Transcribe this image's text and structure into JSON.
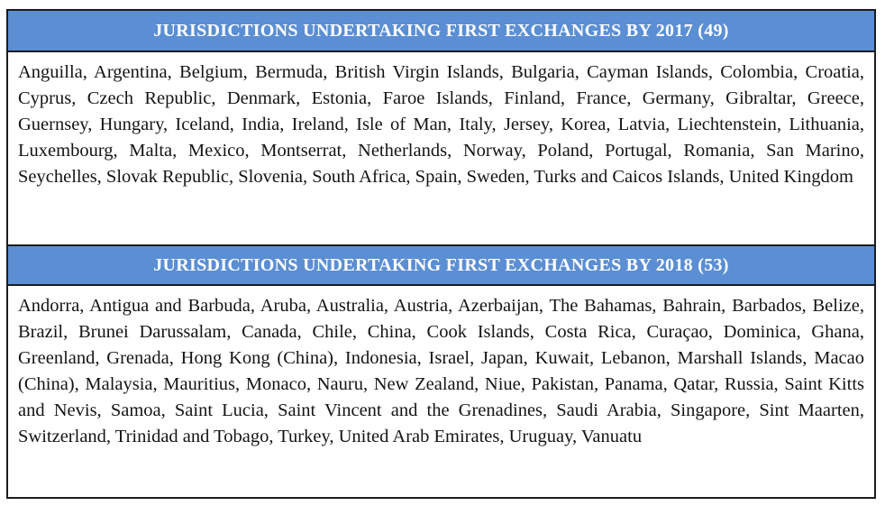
{
  "colors": {
    "header_background": "#5b8ed3",
    "header_text": "#ffffff",
    "table_border": "#1c1c1c",
    "body_text": "#141414",
    "page_background": "#ffffff"
  },
  "sections": [
    {
      "title": "JURISDICTIONS UNDERTAKING FIRST EXCHANGES BY 2017 (49)",
      "year": "2017",
      "count": "49",
      "jurisdictions_text": "Anguilla, Argentina, Belgium, Bermuda, British Virgin Islands, Bulgaria, Cayman Islands, Colombia, Croatia, Cyprus, Czech Republic, Denmark, Estonia, Faroe Islands, Finland, France, Germany, Gibraltar, Greece, Guernsey, Hungary, Iceland, India, Ireland, Isle of Man, Italy, Jersey, Korea, Latvia, Liechtenstein, Lithuania, Luxembourg, Malta, Mexico, Montserrat, Netherlands, Norway, Poland, Portugal, Romania, San Marino, Seychelles, Slovak Republic, Slovenia, South Africa, Spain, Sweden, Turks and Caicos Islands, United Kingdom",
      "jurisdictions": [
        "Anguilla",
        "Argentina",
        "Belgium",
        "Bermuda",
        "British Virgin Islands",
        "Bulgaria",
        "Cayman Islands",
        "Colombia",
        "Croatia",
        "Cyprus",
        "Czech Republic",
        "Denmark",
        "Estonia",
        "Faroe Islands",
        "Finland",
        "France",
        "Germany",
        "Gibraltar",
        "Greece",
        "Guernsey",
        "Hungary",
        "Iceland",
        "India",
        "Ireland",
        "Isle of Man",
        "Italy",
        "Jersey",
        "Korea",
        "Latvia",
        "Liechtenstein",
        "Lithuania",
        "Luxembourg",
        "Malta",
        "Mexico",
        "Montserrat",
        "Netherlands",
        "Norway",
        "Poland",
        "Portugal",
        "Romania",
        "San Marino",
        "Seychelles",
        "Slovak Republic",
        "Slovenia",
        "South Africa",
        "Spain",
        "Sweden",
        "Turks and Caicos Islands",
        "United Kingdom"
      ]
    },
    {
      "title": "JURISDICTIONS UNDERTAKING FIRST EXCHANGES BY 2018 (53)",
      "year": "2018",
      "count": "53",
      "jurisdictions_text": "Andorra, Antigua and Barbuda, Aruba, Australia, Austria, Azerbaijan, The Bahamas, Bahrain, Barbados, Belize, Brazil, Brunei Darussalam, Canada, Chile, China, Cook Islands, Costa Rica, Curaçao, Dominica, Ghana, Greenland, Grenada, Hong Kong (China), Indonesia, Israel, Japan, Kuwait, Lebanon, Marshall Islands, Macao (China), Malaysia, Mauritius, Monaco, Nauru, New Zealand, Niue, Pakistan, Panama, Qatar, Russia, Saint Kitts and Nevis, Samoa, Saint Lucia, Saint Vincent and the Grenadines, Saudi Arabia, Singapore, Sint Maarten, Switzerland, Trinidad and Tobago, Turkey, United Arab Emirates, Uruguay, Vanuatu",
      "jurisdictions": [
        "Andorra",
        "Antigua and Barbuda",
        "Aruba",
        "Australia",
        "Austria",
        "Azerbaijan",
        "The Bahamas",
        "Bahrain",
        "Barbados",
        "Belize",
        "Brazil",
        "Brunei Darussalam",
        "Canada",
        "Chile",
        "China",
        "Cook Islands",
        "Costa Rica",
        "Curaçao",
        "Dominica",
        "Ghana",
        "Greenland",
        "Grenada",
        "Hong Kong (China)",
        "Indonesia",
        "Israel",
        "Japan",
        "Kuwait",
        "Lebanon",
        "Marshall Islands",
        "Macao (China)",
        "Malaysia",
        "Mauritius",
        "Monaco",
        "Nauru",
        "New Zealand",
        "Niue",
        "Pakistan",
        "Panama",
        "Qatar",
        "Russia",
        "Saint Kitts and Nevis",
        "Samoa",
        "Saint Lucia",
        "Saint Vincent and the Grenadines",
        "Saudi Arabia",
        "Singapore",
        "Sint Maarten",
        "Switzerland",
        "Trinidad and Tobago",
        "Turkey",
        "United Arab Emirates",
        "Uruguay",
        "Vanuatu"
      ]
    }
  ]
}
